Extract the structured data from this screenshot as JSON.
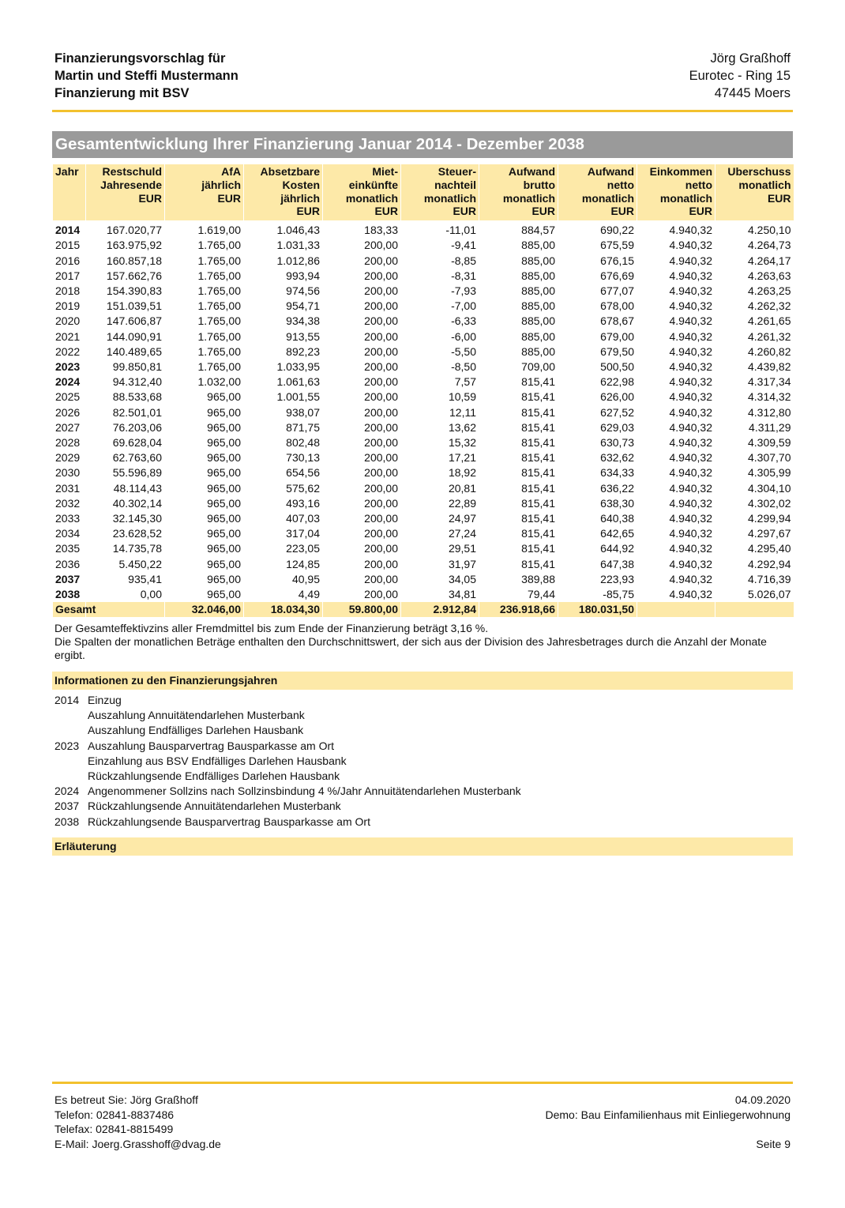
{
  "header": {
    "left": [
      "Finanzierungsvorschlag für",
      "Martin und Steffi Mustermann",
      "Finanzierung mit BSV"
    ],
    "right": [
      "Jörg Graßhoff",
      "Eurotec - Ring 15",
      "47445 Moers"
    ]
  },
  "section_title": "Gesamtentwicklung Ihrer Finanzierung Januar 2014 - Dezember 2038",
  "table": {
    "headers": [
      [
        "Jahr"
      ],
      [
        "Restschuld",
        "Jahresende",
        "EUR"
      ],
      [
        "AfA",
        "jährlich",
        "EUR"
      ],
      [
        "Absetzbare",
        "Kosten",
        "jährlich",
        "EUR"
      ],
      [
        "Miet-",
        "einkünfte",
        "monatlich",
        "EUR"
      ],
      [
        "Steuer-",
        "nachteil",
        "monatlich",
        "EUR"
      ],
      [
        "Aufwand",
        "brutto",
        "monatlich",
        "EUR"
      ],
      [
        "Aufwand",
        "netto",
        "monatlich",
        "EUR"
      ],
      [
        "Einkommen",
        "netto",
        "monatlich",
        "EUR"
      ],
      [
        "Uberschuss",
        "monatlich",
        "EUR"
      ]
    ],
    "rows": [
      {
        "cells": [
          "2014",
          "167.020,77",
          "1.619,00",
          "1.046,43",
          "183,33",
          "-11,01",
          "884,57",
          "690,22",
          "4.940,32",
          "4.250,10"
        ],
        "emphasized": true
      },
      {
        "cells": [
          "2015",
          "163.975,92",
          "1.765,00",
          "1.031,33",
          "200,00",
          "-9,41",
          "885,00",
          "675,59",
          "4.940,32",
          "4.264,73"
        ]
      },
      {
        "cells": [
          "2016",
          "160.857,18",
          "1.765,00",
          "1.012,86",
          "200,00",
          "-8,85",
          "885,00",
          "676,15",
          "4.940,32",
          "4.264,17"
        ]
      },
      {
        "cells": [
          "2017",
          "157.662,76",
          "1.765,00",
          "993,94",
          "200,00",
          "-8,31",
          "885,00",
          "676,69",
          "4.940,32",
          "4.263,63"
        ]
      },
      {
        "cells": [
          "2018",
          "154.390,83",
          "1.765,00",
          "974,56",
          "200,00",
          "-7,93",
          "885,00",
          "677,07",
          "4.940,32",
          "4.263,25"
        ]
      },
      {
        "cells": [
          "2019",
          "151.039,51",
          "1.765,00",
          "954,71",
          "200,00",
          "-7,00",
          "885,00",
          "678,00",
          "4.940,32",
          "4.262,32"
        ]
      },
      {
        "cells": [
          "2020",
          "147.606,87",
          "1.765,00",
          "934,38",
          "200,00",
          "-6,33",
          "885,00",
          "678,67",
          "4.940,32",
          "4.261,65"
        ]
      },
      {
        "cells": [
          "2021",
          "144.090,91",
          "1.765,00",
          "913,55",
          "200,00",
          "-6,00",
          "885,00",
          "679,00",
          "4.940,32",
          "4.261,32"
        ]
      },
      {
        "cells": [
          "2022",
          "140.489,65",
          "1.765,00",
          "892,23",
          "200,00",
          "-5,50",
          "885,00",
          "679,50",
          "4.940,32",
          "4.260,82"
        ]
      },
      {
        "cells": [
          "2023",
          "99.850,81",
          "1.765,00",
          "1.033,95",
          "200,00",
          "-8,50",
          "709,00",
          "500,50",
          "4.940,32",
          "4.439,82"
        ],
        "emphasized": true
      },
      {
        "cells": [
          "2024",
          "94.312,40",
          "1.032,00",
          "1.061,63",
          "200,00",
          "7,57",
          "815,41",
          "622,98",
          "4.940,32",
          "4.317,34"
        ],
        "emphasized": true
      },
      {
        "cells": [
          "2025",
          "88.533,68",
          "965,00",
          "1.001,55",
          "200,00",
          "10,59",
          "815,41",
          "626,00",
          "4.940,32",
          "4.314,32"
        ]
      },
      {
        "cells": [
          "2026",
          "82.501,01",
          "965,00",
          "938,07",
          "200,00",
          "12,11",
          "815,41",
          "627,52",
          "4.940,32",
          "4.312,80"
        ]
      },
      {
        "cells": [
          "2027",
          "76.203,06",
          "965,00",
          "871,75",
          "200,00",
          "13,62",
          "815,41",
          "629,03",
          "4.940,32",
          "4.311,29"
        ]
      },
      {
        "cells": [
          "2028",
          "69.628,04",
          "965,00",
          "802,48",
          "200,00",
          "15,32",
          "815,41",
          "630,73",
          "4.940,32",
          "4.309,59"
        ]
      },
      {
        "cells": [
          "2029",
          "62.763,60",
          "965,00",
          "730,13",
          "200,00",
          "17,21",
          "815,41",
          "632,62",
          "4.940,32",
          "4.307,70"
        ]
      },
      {
        "cells": [
          "2030",
          "55.596,89",
          "965,00",
          "654,56",
          "200,00",
          "18,92",
          "815,41",
          "634,33",
          "4.940,32",
          "4.305,99"
        ]
      },
      {
        "cells": [
          "2031",
          "48.114,43",
          "965,00",
          "575,62",
          "200,00",
          "20,81",
          "815,41",
          "636,22",
          "4.940,32",
          "4.304,10"
        ]
      },
      {
        "cells": [
          "2032",
          "40.302,14",
          "965,00",
          "493,16",
          "200,00",
          "22,89",
          "815,41",
          "638,30",
          "4.940,32",
          "4.302,02"
        ]
      },
      {
        "cells": [
          "2033",
          "32.145,30",
          "965,00",
          "407,03",
          "200,00",
          "24,97",
          "815,41",
          "640,38",
          "4.940,32",
          "4.299,94"
        ]
      },
      {
        "cells": [
          "2034",
          "23.628,52",
          "965,00",
          "317,04",
          "200,00",
          "27,24",
          "815,41",
          "642,65",
          "4.940,32",
          "4.297,67"
        ]
      },
      {
        "cells": [
          "2035",
          "14.735,78",
          "965,00",
          "223,05",
          "200,00",
          "29,51",
          "815,41",
          "644,92",
          "4.940,32",
          "4.295,40"
        ]
      },
      {
        "cells": [
          "2036",
          "5.450,22",
          "965,00",
          "124,85",
          "200,00",
          "31,97",
          "815,41",
          "647,38",
          "4.940,32",
          "4.292,94"
        ]
      },
      {
        "cells": [
          "2037",
          "935,41",
          "965,00",
          "40,95",
          "200,00",
          "34,05",
          "389,88",
          "223,93",
          "4.940,32",
          "4.716,39"
        ],
        "emphasized": true
      },
      {
        "cells": [
          "2038",
          "0,00",
          "965,00",
          "4,49",
          "200,00",
          "34,81",
          "79,44",
          "-85,75",
          "4.940,32",
          "5.026,07"
        ],
        "emphasized": true
      }
    ],
    "total": [
      "Gesamt",
      null,
      "32.046,00",
      "18.034,30",
      "59.800,00",
      "2.912,84",
      "236.918,66",
      "180.031,50",
      null,
      null
    ]
  },
  "notes": [
    "Der Gesamteffektivzins aller Fremdmittel bis zum Ende der Finanzierung beträgt 3,16 %.",
    "Die Spalten der monatlichen Beträge enthalten den Durchschnittswert, der sich aus der Division des Jahresbetrages durch die Anzahl der Monate ergibt."
  ],
  "info": {
    "title": "Informationen zu den Finanzierungsjahren",
    "entries": [
      {
        "year": "2014",
        "items": [
          "Einzug",
          "Auszahlung Annuitätendarlehen Musterbank",
          "Auszahlung Endfälliges Darlehen Hausbank"
        ]
      },
      {
        "year": "2023",
        "items": [
          "Auszahlung Bausparvertrag Bausparkasse am Ort",
          "Einzahlung aus BSV Endfälliges Darlehen Hausbank",
          "Rückzahlungsende Endfälliges Darlehen Hausbank"
        ]
      },
      {
        "year": "2024",
        "items": [
          "Angenommener Sollzins nach Sollzinsbindung 4 %/Jahr Annuitätendarlehen Musterbank"
        ]
      },
      {
        "year": "2037",
        "items": [
          "Rückzahlungsende Annuitätendarlehen Musterbank"
        ]
      },
      {
        "year": "2038",
        "items": [
          "Rückzahlungsende Bausparvertrag Bausparkasse am Ort"
        ]
      }
    ]
  },
  "explanation_title": "Erläuterung",
  "footer": {
    "left": [
      "Es betreut Sie: Jörg Graßhoff",
      "Telefon: 02841-8837486",
      "Telefax: 02841-8815499",
      "E-Mail: Joerg.Grasshoff@dvag.de"
    ],
    "right": [
      "04.09.2020",
      "Demo: Bau Einfamilienhaus mit Einliegerwohnung",
      "Seite 9"
    ]
  }
}
